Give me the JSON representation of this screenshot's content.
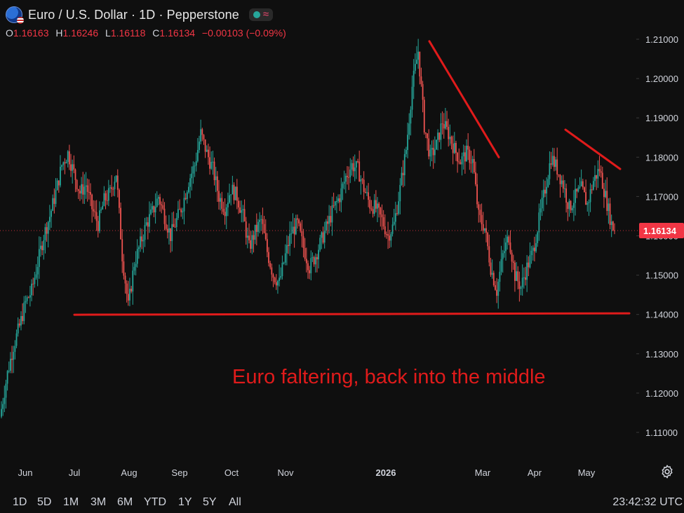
{
  "header": {
    "title": "Euro / U.S. Dollar · 1D · Pepperstone",
    "ohlc": [
      {
        "key": "O",
        "value": "1.16163"
      },
      {
        "key": "H",
        "value": "1.16246"
      },
      {
        "key": "L",
        "value": "1.16118"
      },
      {
        "key": "C",
        "value": "1.16134"
      }
    ],
    "change": "−0.00103 (−0.09%)",
    "icons": [
      "flag-icon",
      "status-dot-icon",
      "approx-icon"
    ]
  },
  "colors": {
    "background": "#0f0f0f",
    "up": "#26a69a",
    "down": "#ef5350",
    "annotation": "#e01b1b",
    "price_label": "#f23645"
  },
  "chart_data": {
    "type": "candlestick",
    "y_ticks": [
      "1.21000",
      "1.20000",
      "1.19000",
      "1.18000",
      "1.17000",
      "1.16000",
      "1.15000",
      "1.14000",
      "1.13000",
      "1.12000",
      "1.11000"
    ],
    "x_ticks": [
      "Jun",
      "Jul",
      "Aug",
      "Sep",
      "Oct",
      "Nov",
      "2026",
      "Mar",
      "Apr",
      "May"
    ],
    "ylim": [
      1.1035,
      1.2145
    ],
    "last_price_label": "1.16134",
    "last_price": 1.16134,
    "annotation_text": "Euro faltering, back into the middle",
    "support_level": 1.141,
    "trendlines": [
      {
        "from": {
          "x": "early Feb",
          "y": 1.2095
        },
        "to": {
          "x": "late Feb",
          "y": 1.18
        }
      },
      {
        "from": {
          "x": "mid Apr",
          "y": 1.187
        },
        "to": {
          "x": "mid May",
          "y": 1.177
        }
      }
    ],
    "close_path": [
      [
        0,
        1.116
      ],
      [
        4,
        1.125
      ],
      [
        8,
        1.132
      ],
      [
        12,
        1.137
      ],
      [
        16,
        1.143
      ],
      [
        20,
        1.146
      ],
      [
        24,
        1.153
      ],
      [
        28,
        1.16
      ],
      [
        32,
        1.165
      ],
      [
        36,
        1.171
      ],
      [
        40,
        1.178
      ],
      [
        44,
        1.181
      ],
      [
        48,
        1.176
      ],
      [
        52,
        1.171
      ],
      [
        56,
        1.173
      ],
      [
        60,
        1.167
      ],
      [
        64,
        1.163
      ],
      [
        68,
        1.169
      ],
      [
        72,
        1.171
      ],
      [
        76,
        1.176
      ],
      [
        80,
        1.155
      ],
      [
        84,
        1.142
      ],
      [
        88,
        1.153
      ],
      [
        92,
        1.158
      ],
      [
        96,
        1.163
      ],
      [
        100,
        1.166
      ],
      [
        104,
        1.17
      ],
      [
        108,
        1.165
      ],
      [
        112,
        1.16
      ],
      [
        116,
        1.164
      ],
      [
        120,
        1.168
      ],
      [
        124,
        1.174
      ],
      [
        128,
        1.178
      ],
      [
        132,
        1.186
      ],
      [
        136,
        1.181
      ],
      [
        140,
        1.177
      ],
      [
        144,
        1.17
      ],
      [
        148,
        1.167
      ],
      [
        152,
        1.172
      ],
      [
        156,
        1.17
      ],
      [
        160,
        1.165
      ],
      [
        164,
        1.157
      ],
      [
        168,
        1.161
      ],
      [
        172,
        1.164
      ],
      [
        176,
        1.156
      ],
      [
        180,
        1.15
      ],
      [
        184,
        1.148
      ],
      [
        188,
        1.155
      ],
      [
        192,
        1.161
      ],
      [
        196,
        1.163
      ],
      [
        200,
        1.157
      ],
      [
        204,
        1.152
      ],
      [
        208,
        1.155
      ],
      [
        212,
        1.159
      ],
      [
        216,
        1.163
      ],
      [
        220,
        1.167
      ],
      [
        224,
        1.17
      ],
      [
        228,
        1.175
      ],
      [
        232,
        1.178
      ],
      [
        236,
        1.177
      ],
      [
        240,
        1.172
      ],
      [
        244,
        1.168
      ],
      [
        248,
        1.167
      ],
      [
        252,
        1.164
      ],
      [
        256,
        1.16
      ],
      [
        260,
        1.163
      ],
      [
        264,
        1.172
      ],
      [
        268,
        1.182
      ],
      [
        272,
        1.198
      ],
      [
        276,
        1.207
      ],
      [
        280,
        1.188
      ],
      [
        284,
        1.18
      ],
      [
        288,
        1.183
      ],
      [
        292,
        1.189
      ],
      [
        296,
        1.186
      ],
      [
        300,
        1.182
      ],
      [
        304,
        1.179
      ],
      [
        308,
        1.181
      ],
      [
        312,
        1.179
      ],
      [
        316,
        1.165
      ],
      [
        320,
        1.162
      ],
      [
        324,
        1.152
      ],
      [
        328,
        1.146
      ],
      [
        332,
        1.155
      ],
      [
        336,
        1.16
      ],
      [
        340,
        1.15
      ],
      [
        344,
        1.147
      ],
      [
        348,
        1.152
      ],
      [
        352,
        1.156
      ],
      [
        356,
        1.164
      ],
      [
        360,
        1.172
      ],
      [
        364,
        1.18
      ],
      [
        368,
        1.177
      ],
      [
        372,
        1.173
      ],
      [
        376,
        1.167
      ],
      [
        380,
        1.17
      ],
      [
        384,
        1.172
      ],
      [
        388,
        1.168
      ],
      [
        392,
        1.174
      ],
      [
        396,
        1.177
      ],
      [
        400,
        1.17
      ],
      [
        404,
        1.163
      ],
      [
        406,
        1.16134
      ]
    ]
  },
  "footer": {
    "ranges": [
      "1D",
      "5D",
      "1M",
      "3M",
      "6M",
      "YTD",
      "1Y",
      "5Y",
      "All"
    ],
    "clock": "23:42:32 UTC"
  }
}
